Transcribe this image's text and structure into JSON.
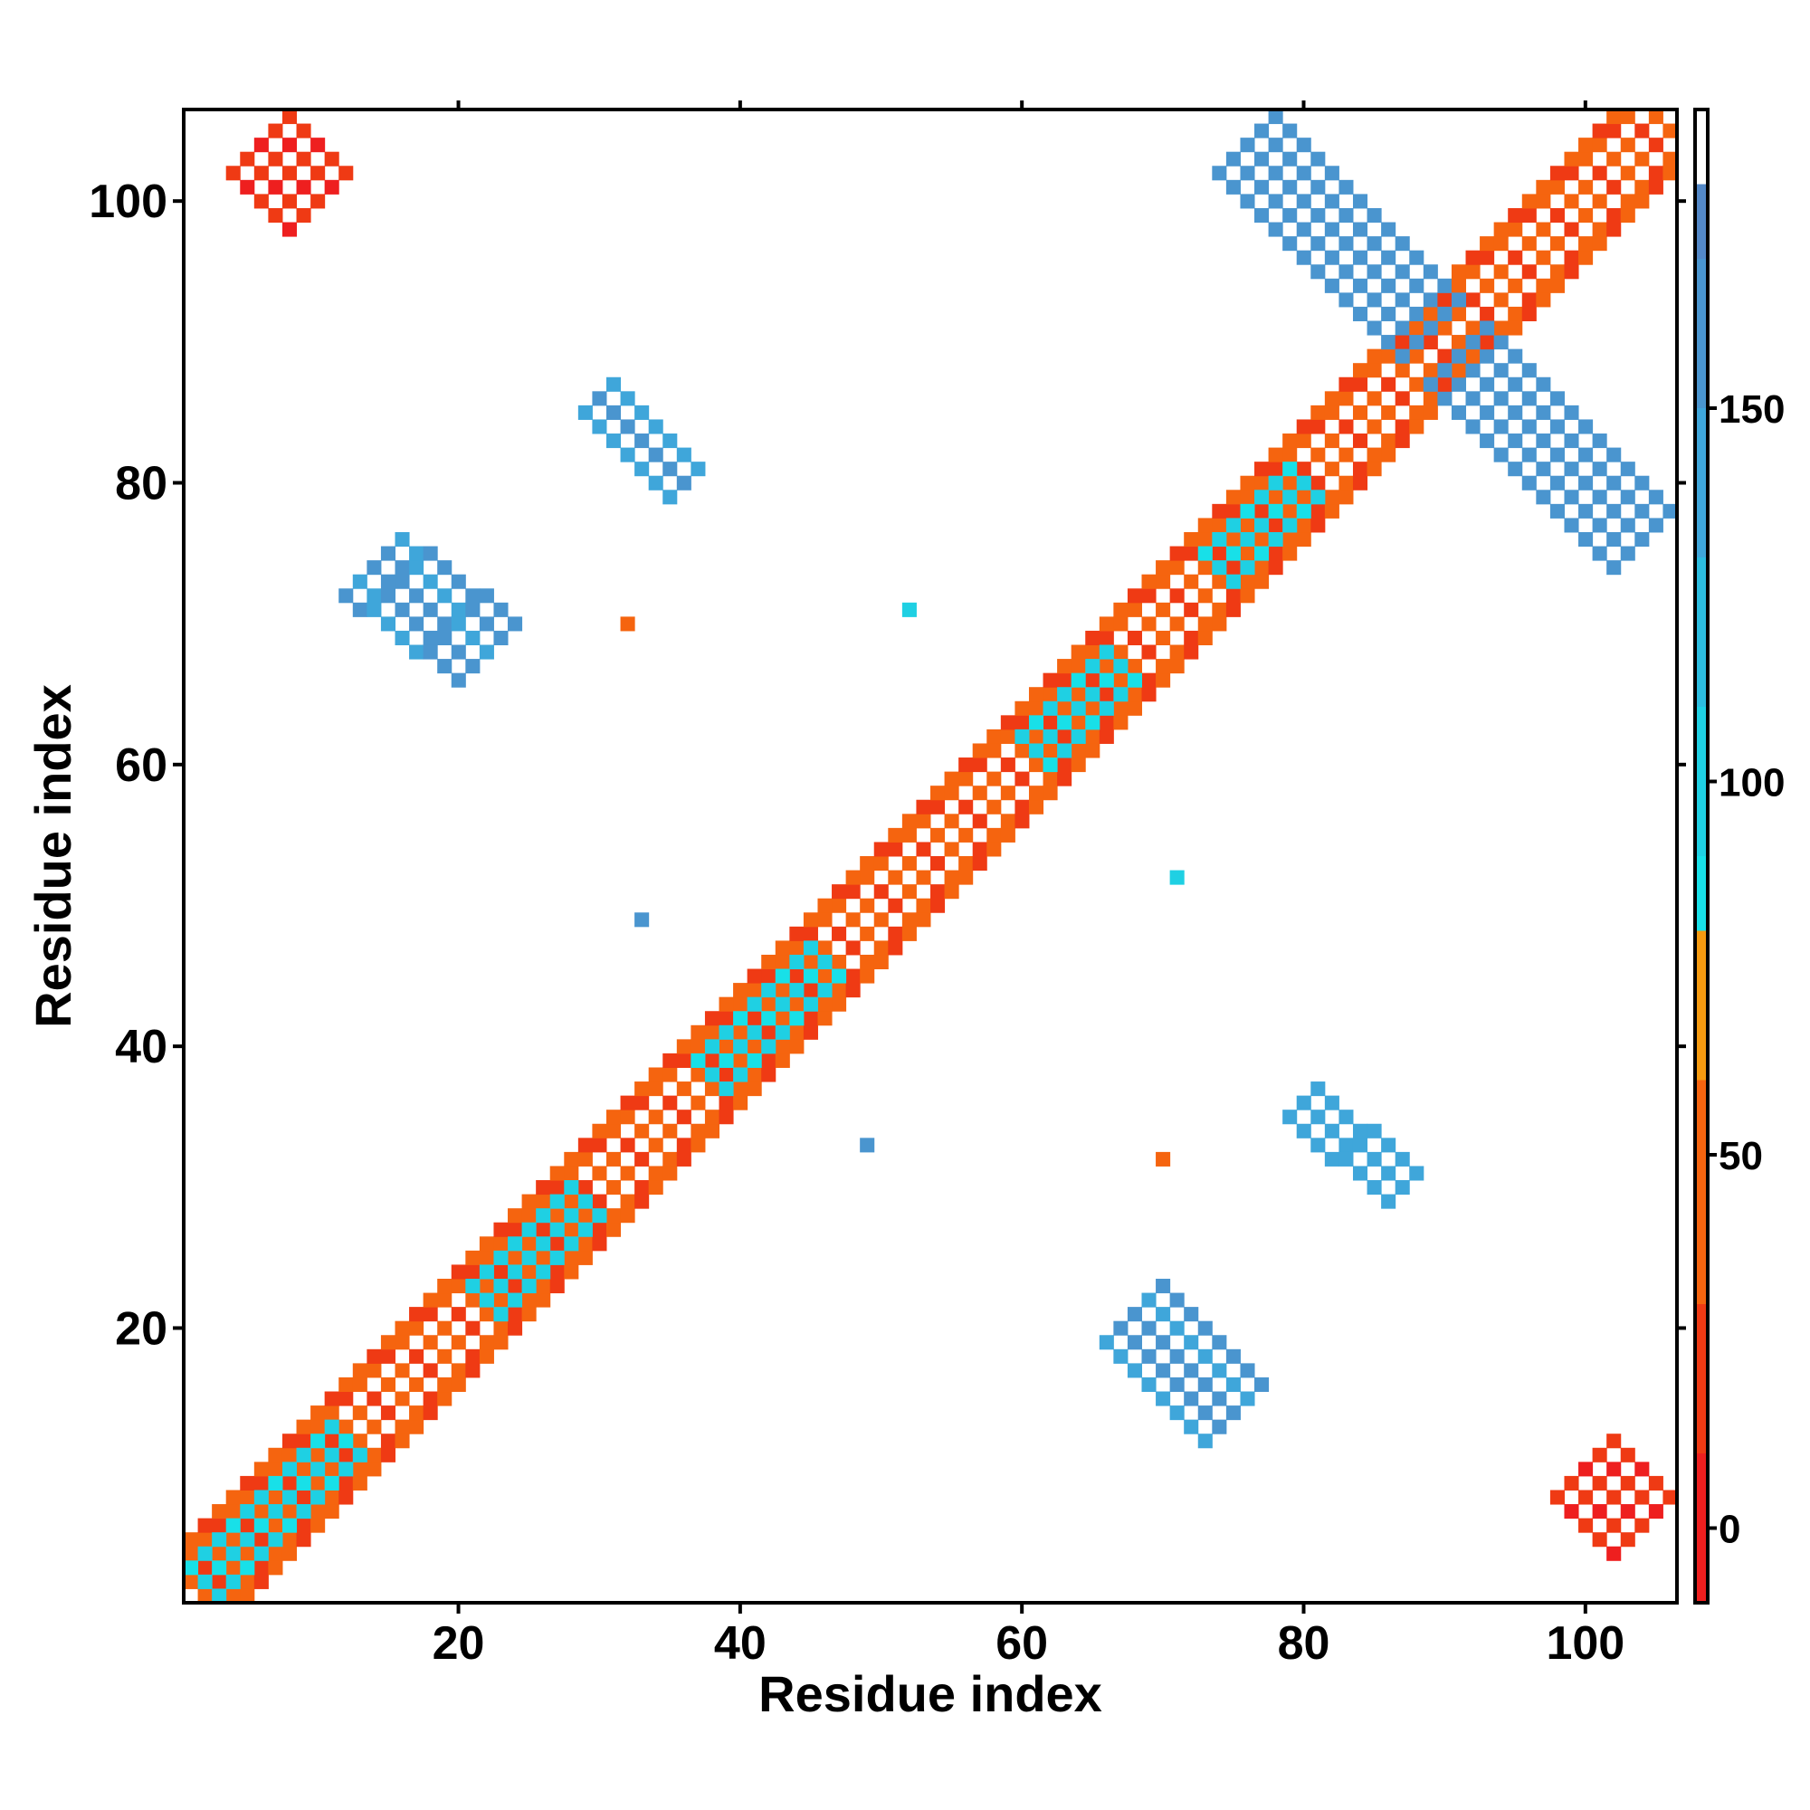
{
  "chart_data": {
    "type": "heatmap",
    "title": "",
    "xlabel": "Residue index",
    "ylabel": "Residue index",
    "xlim": [
      0.5,
      106.5
    ],
    "ylim": [
      0.5,
      106.5
    ],
    "x_ticks": [
      20,
      40,
      60,
      80,
      100
    ],
    "y_ticks": [
      20,
      40,
      60,
      80,
      100
    ],
    "colorbar": {
      "range": [
        -10,
        190
      ],
      "ticks": [
        0,
        50,
        100,
        150
      ],
      "bands": [
        {
          "from": -10,
          "to": 10,
          "color": "#ee1f1f"
        },
        {
          "from": 10,
          "to": 30,
          "color": "#ef3a14"
        },
        {
          "from": 30,
          "to": 60,
          "color": "#f5640f"
        },
        {
          "from": 60,
          "to": 80,
          "color": "#f59a10"
        },
        {
          "from": 80,
          "to": 90,
          "color": "#18e0e8"
        },
        {
          "from": 90,
          "to": 110,
          "color": "#1fd0e3"
        },
        {
          "from": 110,
          "to": 130,
          "color": "#2cbcdf"
        },
        {
          "from": 130,
          "to": 150,
          "color": "#3fa6da"
        },
        {
          "from": 150,
          "to": 170,
          "color": "#4a95cf"
        },
        {
          "from": 170,
          "to": 180,
          "color": "#5388c7"
        },
        {
          "from": 180,
          "to": 190,
          "color": "#ffffff"
        }
      ]
    },
    "regions": [
      {
        "name": "diagonal",
        "kind": "diagonal",
        "from": 1,
        "to": 105,
        "value": 30
      },
      {
        "name": "helix-like 1",
        "x0": 2,
        "y0": 2,
        "x1": 12,
        "y1": 12,
        "width": 3,
        "value": 95
      },
      {
        "name": "helix-like 2",
        "x0": 22,
        "y0": 22,
        "x1": 29,
        "y1": 29,
        "width": 3,
        "value": 100
      },
      {
        "name": "helix-like 3",
        "x0": 38,
        "y0": 38,
        "x1": 46,
        "y1": 46,
        "width": 3,
        "value": 95
      },
      {
        "name": "helix-like 4",
        "x0": 61,
        "y0": 61,
        "x1": 67,
        "y1": 67,
        "width": 3,
        "value": 95
      },
      {
        "name": "helix-like 5",
        "x0": 74,
        "y0": 74,
        "x1": 80,
        "y1": 80,
        "width": 3,
        "value": 95
      },
      {
        "name": "sheet 68-21 upper",
        "x0": 14,
        "y0": 74,
        "x1": 22,
        "y1": 68,
        "width": 4,
        "value": 155
      },
      {
        "name": "sheet 68-21 lower",
        "x0": 68,
        "y0": 21,
        "x1": 75,
        "y1": 14,
        "width": 4,
        "value": 155
      },
      {
        "name": "sheet 31-86",
        "x0": 30,
        "y0": 86,
        "x1": 36,
        "y1": 80,
        "width": 2,
        "value": 145
      },
      {
        "name": "sheet 80-35",
        "x0": 80,
        "y0": 36,
        "x1": 87,
        "y1": 30,
        "width": 2,
        "value": 140
      },
      {
        "name": "antiparallel upper arm",
        "x0": 76,
        "y0": 104,
        "x1": 89,
        "y1": 91,
        "width": 4,
        "value": 160
      },
      {
        "name": "antiparallel lower arm",
        "x0": 91,
        "y0": 89,
        "x1": 104,
        "y1": 76,
        "width": 4,
        "value": 160
      },
      {
        "name": "terminal contact upper-left",
        "x0": 6,
        "y0": 100,
        "x1": 10,
        "y1": 104,
        "width": 4,
        "value": 10
      },
      {
        "name": "terminal contact lower-right",
        "x0": 100,
        "y0": 6,
        "x1": 104,
        "y1": 10,
        "width": 4,
        "value": 10
      },
      {
        "name": "isolated contact 1",
        "x": 32,
        "y": 70,
        "value": 45
      },
      {
        "name": "isolated contact 2",
        "x": 70,
        "y": 32,
        "value": 45
      },
      {
        "name": "isolated contact 3",
        "x": 52,
        "y": 71,
        "value": 100
      },
      {
        "name": "isolated contact 4",
        "x": 71,
        "y": 52,
        "value": 100
      },
      {
        "name": "isolated contact 5",
        "x": 33,
        "y": 49,
        "value": 160
      },
      {
        "name": "isolated contact 6",
        "x": 49,
        "y": 33,
        "value": 160
      }
    ]
  }
}
